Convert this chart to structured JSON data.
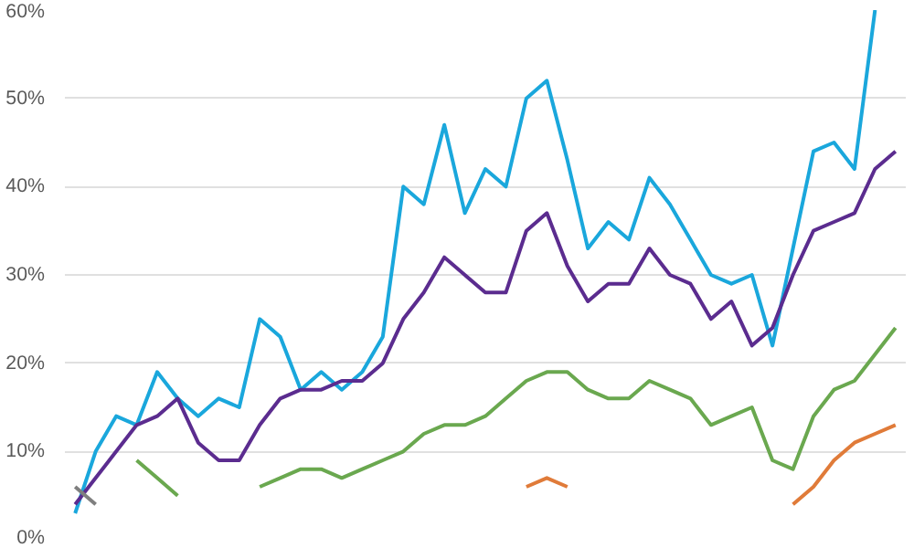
{
  "chart_data": {
    "type": "line",
    "categories": [
      null,
      null,
      null,
      null,
      null,
      null,
      null,
      null,
      null,
      null,
      null,
      null,
      null,
      null,
      null,
      null,
      null,
      null,
      null,
      null,
      null,
      null,
      null,
      null,
      null,
      null,
      null,
      null,
      null,
      null,
      null,
      null,
      null,
      null,
      null,
      null,
      null,
      null,
      null,
      null,
      null
    ],
    "series": [
      {
        "color": "#1aa7dc",
        "values": [
          3,
          10,
          14,
          13,
          19,
          16,
          14,
          16,
          15,
          25,
          23,
          17,
          19,
          17,
          19,
          23,
          40,
          38,
          47,
          37,
          42,
          40,
          50,
          52,
          43,
          33,
          36,
          34,
          41,
          38,
          34,
          30,
          29,
          30,
          22,
          33,
          44,
          45,
          42,
          60,
          null
        ]
      },
      {
        "color": "#5b2c8f",
        "values": [
          4,
          7,
          10,
          13,
          14,
          16,
          11,
          9,
          9,
          13,
          16,
          17,
          17,
          18,
          18,
          20,
          25,
          28,
          32,
          30,
          28,
          28,
          35,
          37,
          31,
          27,
          29,
          29,
          33,
          30,
          29,
          25,
          27,
          22,
          24,
          30,
          35,
          36,
          37,
          42,
          44
        ]
      },
      {
        "color": "#6aa84f",
        "values": [
          null,
          null,
          null,
          9,
          7,
          5,
          null,
          null,
          null,
          6,
          7,
          8,
          8,
          7,
          8,
          9,
          10,
          12,
          13,
          13,
          14,
          16,
          18,
          19,
          19,
          17,
          16,
          16,
          18,
          17,
          16,
          13,
          14,
          15,
          9,
          8,
          14,
          17,
          18,
          21,
          24
        ]
      },
      {
        "color": "#e07b39",
        "values": [
          null,
          null,
          null,
          null,
          null,
          null,
          null,
          null,
          null,
          null,
          null,
          null,
          null,
          null,
          null,
          null,
          null,
          null,
          null,
          null,
          null,
          null,
          6,
          7,
          6,
          null,
          null,
          null,
          null,
          null,
          null,
          null,
          null,
          null,
          null,
          4,
          6,
          9,
          11,
          12,
          13
        ]
      },
      {
        "color": "#7f7f7f",
        "values": [
          6,
          4,
          null,
          null,
          null,
          null,
          null,
          null,
          null,
          null,
          null,
          null,
          null,
          null,
          null,
          null,
          null,
          null,
          null,
          null,
          null,
          null,
          null,
          null,
          null,
          null,
          null,
          null,
          null,
          null,
          null,
          null,
          null,
          null,
          null,
          null,
          null,
          null,
          null,
          null,
          null
        ]
      }
    ],
    "ylim": [
      0,
      60
    ],
    "yticks": [
      {
        "value": 0,
        "label": "0%"
      },
      {
        "value": 10,
        "label": "10%"
      },
      {
        "value": 20,
        "label": "20%"
      },
      {
        "value": 30,
        "label": "30%"
      },
      {
        "value": 40,
        "label": "40%"
      },
      {
        "value": 50,
        "label": "50%"
      },
      {
        "value": 60,
        "label": "60%"
      }
    ],
    "grid": "y",
    "tick_labels": "y",
    "line_style": "solid"
  }
}
